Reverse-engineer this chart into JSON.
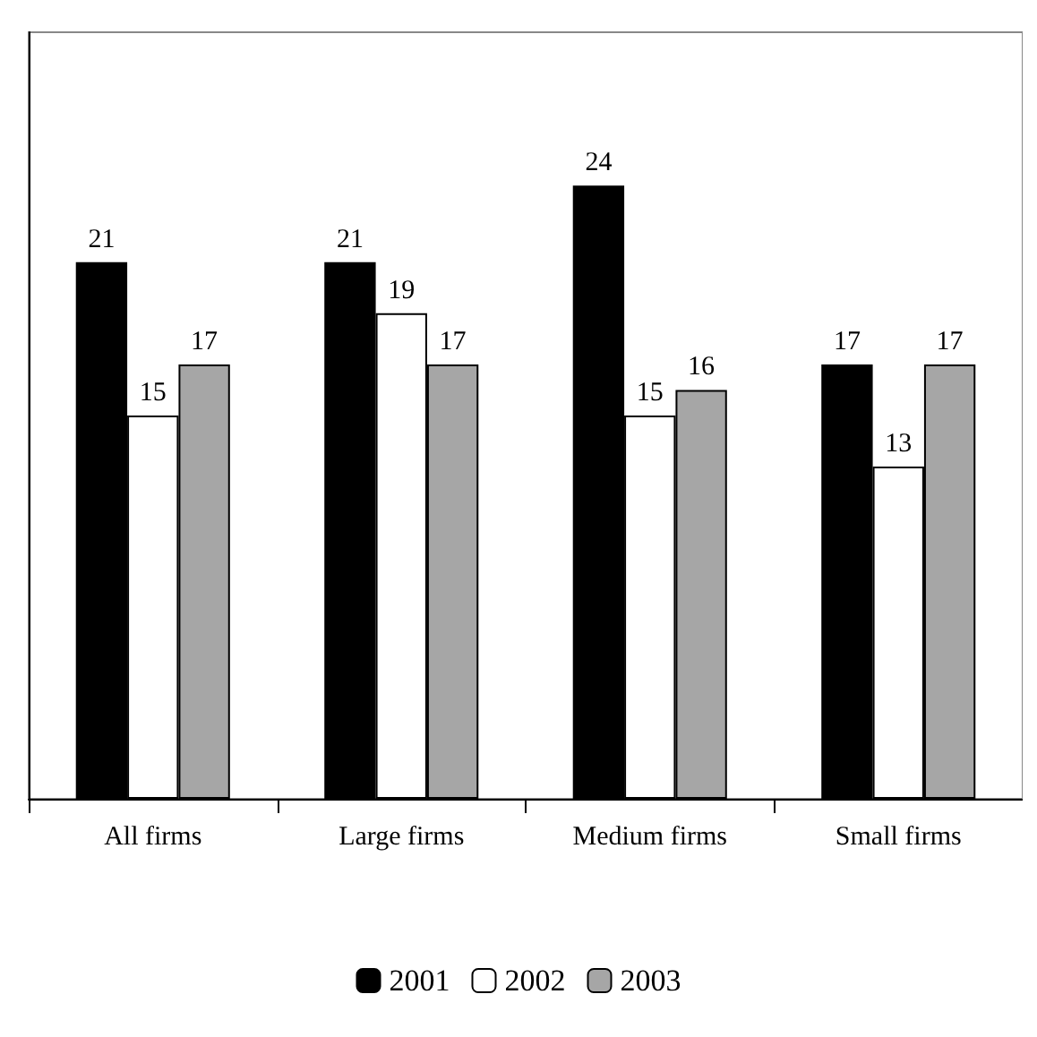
{
  "chart_data": {
    "type": "bar",
    "categories": [
      "All firms",
      "Large firms",
      "Medium firms",
      "Small firms"
    ],
    "series": [
      {
        "name": "2001",
        "color": "#000000",
        "values": [
          21,
          21,
          24,
          17
        ]
      },
      {
        "name": "2002",
        "color": "#ffffff",
        "values": [
          15,
          19,
          15,
          13
        ]
      },
      {
        "name": "2003",
        "color": "#a6a6a6",
        "values": [
          17,
          17,
          16,
          17
        ]
      }
    ],
    "ylim": [
      0,
      30
    ],
    "tick_labels": "x",
    "data_labels": true,
    "legend": "bottom",
    "grid": false
  }
}
